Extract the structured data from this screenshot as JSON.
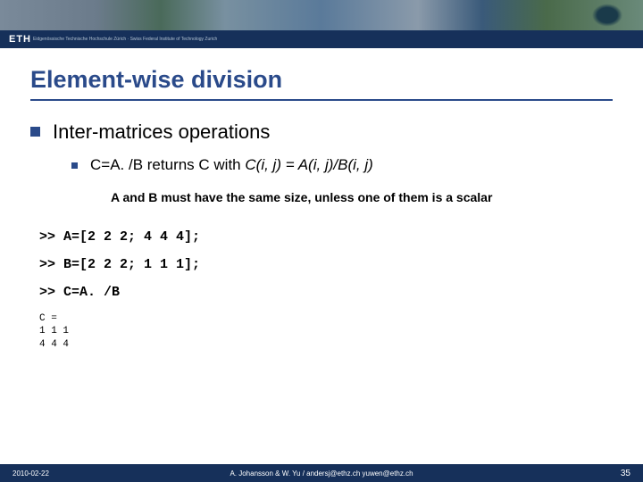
{
  "header": {
    "logo": "ETH",
    "logo_sub": "Eidgenössische Technische Hochschule Zürich\nSwiss Federal Institute of Technology Zurich",
    "band_colors": [
      "#7a8a9a",
      "#4a6a5a",
      "#5a7a9a",
      "#3a5a7a"
    ],
    "bar_color": "#16305a"
  },
  "title": {
    "text": "Element-wise division",
    "color": "#2a4a8a",
    "fontsize": 27
  },
  "bullet1": {
    "text": "Inter-matrices operations",
    "fontsize": 22
  },
  "bullet2": {
    "prefix": "C=A. /B returns C with ",
    "formula": "C(i, j) = A(i, j)/B(i, j)",
    "fontsize": 17
  },
  "note": {
    "text": "A and B must have the same size, unless one of them is a scalar",
    "fontsize": 14
  },
  "code": {
    "line1": ">> A=[2 2 2; 4 4 4];",
    "line2": ">> B=[2 2 2; 1 1 1];",
    "line3": ">> C=A. /B",
    "font": "Courier New",
    "fontsize": 15
  },
  "output": {
    "text": "C =\n1 1 1\n4 4 4",
    "fontsize": 11
  },
  "footer": {
    "date": "2010-02-22",
    "authors": "A. Johansson & W. Yu / andersj@ethz.ch  yuwen@ethz.ch",
    "page": "35",
    "bg_color": "#16305a",
    "text_color": "#ffffff"
  },
  "bullet_color": "#2a4a8a"
}
